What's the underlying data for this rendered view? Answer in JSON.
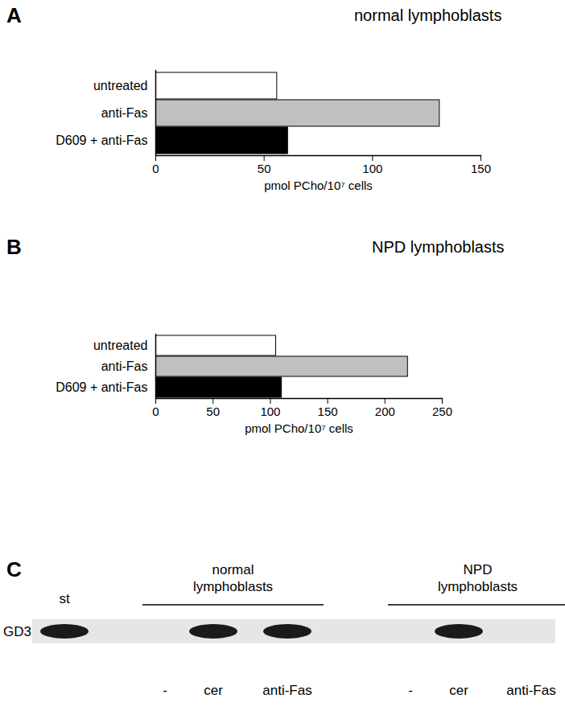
{
  "chart_data": [
    {
      "type": "bar",
      "orientation": "horizontal",
      "annotation": "A",
      "title": "normal lymphoblasts",
      "categories": [
        "untreated",
        "anti-Fas",
        "D609 + anti-Fas"
      ],
      "values": [
        56,
        131,
        61
      ],
      "colors": [
        "#ffffff",
        "#c0c0c0",
        "#000000"
      ],
      "x_label": "pmol PCho/10⁷ cells",
      "xlim": [
        0,
        150
      ],
      "xticks": [
        0,
        50,
        100,
        150
      ],
      "grid": false
    },
    {
      "type": "bar",
      "orientation": "horizontal",
      "annotation": "B",
      "title": "NPD lymphoblasts",
      "categories": [
        "untreated",
        "anti-Fas",
        "D609 + anti-Fas"
      ],
      "values": [
        105,
        220,
        110
      ],
      "colors": [
        "#ffffff",
        "#c0c0c0",
        "#000000"
      ],
      "x_label": "pmol PCho/10⁷ cells",
      "xlim": [
        0,
        250
      ],
      "xticks": [
        0,
        50,
        100,
        150,
        200,
        250
      ],
      "grid": false
    }
  ],
  "blot": {
    "annotation": "C",
    "row_label": "GD3",
    "groups": [
      "normal lymphoblasts",
      "NPD lymphoblasts"
    ],
    "lanes": [
      {
        "label": "st",
        "group": null,
        "band": true
      },
      {
        "label": "-",
        "group": 0,
        "band": false
      },
      {
        "label": "cer",
        "group": 0,
        "band": true
      },
      {
        "label": "anti-Fas",
        "group": 0,
        "band": true
      },
      {
        "label": "-",
        "group": 1,
        "band": false
      },
      {
        "label": "cer",
        "group": 1,
        "band": true
      },
      {
        "label": "anti-Fas",
        "group": 1,
        "band": false
      }
    ]
  }
}
